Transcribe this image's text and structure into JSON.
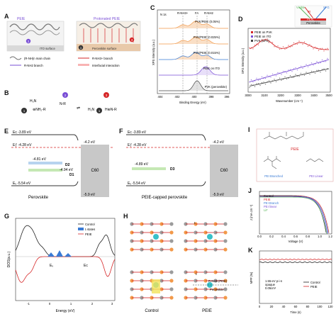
{
  "panel_labels": {
    "A": "A",
    "B": "B",
    "C": "C",
    "D": "D",
    "E": "E",
    "F": "F",
    "G": "G",
    "H": "H",
    "I": "I",
    "J": "J",
    "K": "K"
  },
  "panelA": {
    "peie": "PEIE",
    "protonated": "Protonated PEIE",
    "ito_surface": "ITO surface",
    "pvk_surface": "Perovskite surface",
    "legend_main": "(R-NH)n main chain",
    "legend_nh2": "R-NH2 branch",
    "legend_nh3": "R-NH3+ branch",
    "legend_inter": "Interfacial interaction"
  },
  "panelC": {
    "title": "N 1s",
    "peaks": [
      "R-NH3+",
      "FA",
      "R-NH2"
    ],
    "series": [
      "PVK/PEIE (0.05%)",
      "PVK/PEIE (0.025%)",
      "PVK/PEIE (0.015%)",
      "PEIE on ITO",
      "PVK (perovskite)"
    ],
    "xlabel": "Binding Energy (eV)",
    "ylabel": "XPS Intensity (a.u.)",
    "xticks": [
      "404",
      "402",
      "400",
      "398",
      "396"
    ]
  },
  "panelD": {
    "legend": [
      "PEIE on PVK",
      "PEIE on ITO",
      "PVK (SFG)"
    ],
    "xlabel": "Wavenumber (cm⁻¹)",
    "ylabel": "SFG Intensity (a.u.)",
    "xticks": [
      "3000",
      "3100",
      "3200",
      "3300",
      "3400",
      "3500"
    ],
    "inset": {
      "visible": "Visible",
      "ir": "IR",
      "sfg": "SFG",
      "peie": "PEIE",
      "pvk": "Perovskite"
    }
  },
  "panelE": {
    "ec": "Eᴄ -3.89 eV",
    "ef": "Eƒ -4.28 eV",
    "d2": "-4.81 eV",
    "d2_label": "D2",
    "d1": "-4.94 eV",
    "d1_label": "D1",
    "ev": "Eᵥ -5.54 eV",
    "c60_top": "-4.2 eV",
    "c60": "C60",
    "c60_bot": "-5.9 eV",
    "caption": "Perovskite"
  },
  "panelF": {
    "ec": "Eᴄ -3.89 eV",
    "ef": "Eƒ -4.28 eV",
    "d3": "-4.89 eV",
    "d3_label": "D3",
    "ev": "Eᵥ -5.54 eV",
    "c60_top": "-4.2 eV",
    "c60": "C60",
    "c60_bot": "-5.9 eV",
    "caption": "PEIE-capped perovskite"
  },
  "panelG": {
    "legend": [
      "Control",
      "tₗ states",
      "PEIE"
    ],
    "ylabel": "DOS(a.u.)",
    "xlabel": "Energy (eV)",
    "ev": "Eᵥ",
    "ec": "Eᴄ",
    "xticks": [
      "-1",
      "0",
      "1",
      "2",
      "3"
    ]
  },
  "panelH": {
    "control": "Control",
    "peie": "PEIE",
    "rnh3": "R-NH3 (PEIE)",
    "pvk": "Perovskite",
    "tag": "tₗ"
  },
  "panelI": {
    "peie": "PEIE",
    "branched": "PEI Branched",
    "linear": "PEI Linear"
  },
  "panelJ": {
    "legend": [
      "Control",
      "PEIE",
      "PEI Branch",
      "PEI linear",
      "LiF"
    ],
    "xlabel": "Voltage (V)",
    "ylabel": "J (mA cm⁻²)",
    "xticks": [
      "0.0",
      "0.2",
      "0.4",
      "0.6",
      "0.8",
      "1.0",
      "1.2"
    ]
  },
  "panelK": {
    "legend": [
      "Control",
      "PEIE"
    ],
    "note1": "1.55-eV p-i-n",
    "note2": "opaque",
    "note3": "0.05cm²",
    "xlabel": "Time (s)",
    "ylabel": "MPP (%)",
    "xticks": [
      "0",
      "20",
      "40",
      "60",
      "80",
      "100",
      "120"
    ]
  },
  "colors": {
    "purple": "#7a4fd6",
    "red": "#d62728",
    "orange": "#f2994a",
    "blue": "#3a7bd5",
    "green": "#5cb85c",
    "gray": "#888888"
  }
}
